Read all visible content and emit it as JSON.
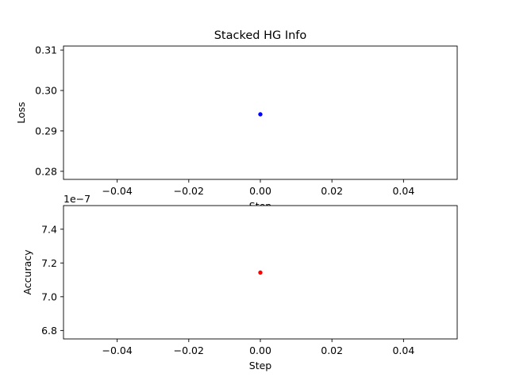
{
  "figure": {
    "title": "Stacked HG Info"
  },
  "chart_data": [
    {
      "type": "scatter",
      "title": "Stacked HG Info",
      "xlabel": "Step",
      "ylabel": "Loss",
      "xlim": [
        -0.055,
        0.055
      ],
      "ylim": [
        0.278,
        0.311
      ],
      "x_ticks": [
        -0.04,
        -0.02,
        0.0,
        0.02,
        0.04
      ],
      "x_tick_labels": [
        "−0.04",
        "−0.02",
        "0.00",
        "0.02",
        "0.04"
      ],
      "y_ticks": [
        0.28,
        0.29,
        0.3,
        0.31
      ],
      "y_tick_labels": [
        "0.28",
        "0.29",
        "0.30",
        "0.31"
      ],
      "y_offset_text": "",
      "grid": false,
      "series": [
        {
          "x": [
            0.0
          ],
          "y": [
            0.2941
          ],
          "color": "#0000ff"
        }
      ]
    },
    {
      "type": "scatter",
      "title": "",
      "xlabel": "Step",
      "ylabel": "Accuracy",
      "xlim": [
        -0.055,
        0.055
      ],
      "ylim": [
        6.75,
        7.54
      ],
      "x_ticks": [
        -0.04,
        -0.02,
        0.0,
        0.02,
        0.04
      ],
      "x_tick_labels": [
        "−0.04",
        "−0.02",
        "0.00",
        "0.02",
        "0.04"
      ],
      "y_ticks": [
        6.8,
        7.0,
        7.2,
        7.4
      ],
      "y_tick_labels": [
        "6.8",
        "7.0",
        "7.2",
        "7.4"
      ],
      "y_offset_text": "1e−7",
      "grid": false,
      "series": [
        {
          "x": [
            0.0
          ],
          "y": [
            7.143
          ],
          "color": "#ff0000"
        }
      ]
    }
  ]
}
